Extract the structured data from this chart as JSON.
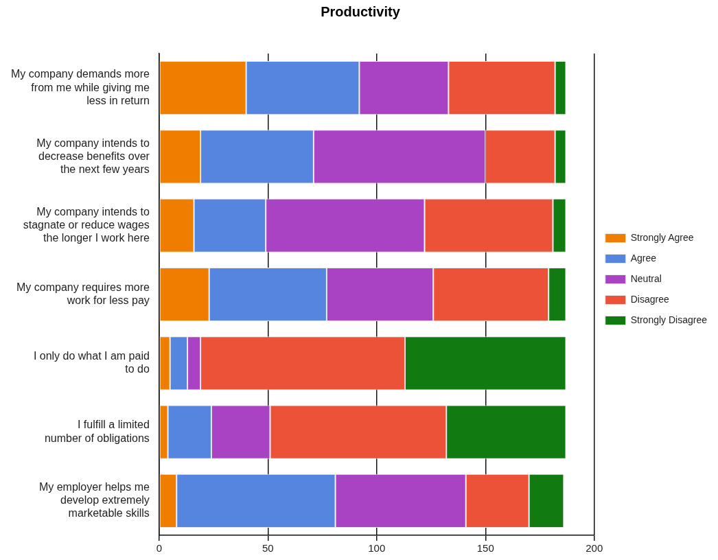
{
  "chart_data": {
    "type": "bar",
    "title": "Productivity",
    "orientation": "horizontal",
    "stacked": true,
    "categories": [
      "My company demands more from me while giving me less in return",
      "My company intends to decrease benefits over the next few years",
      "My company intends to stagnate or reduce wages the longer I work here",
      "My company requires more work for less pay",
      "I only do what I am paid to do",
      "I fulfill a limited number of obligations",
      "My employer helps me develop extremely marketable skills"
    ],
    "series": [
      {
        "name": "Strongly Agree",
        "color": "#ee7d00",
        "values": [
          40,
          19,
          16,
          23,
          5,
          4,
          8
        ]
      },
      {
        "name": "Agree",
        "color": "#5585de",
        "values": [
          52,
          52,
          33,
          54,
          8,
          20,
          73
        ]
      },
      {
        "name": "Neutral",
        "color": "#a943c4",
        "values": [
          41,
          79,
          73,
          49,
          6,
          27,
          60
        ]
      },
      {
        "name": "Disagree",
        "color": "#ec5237",
        "values": [
          49,
          32,
          59,
          53,
          94,
          81,
          29
        ]
      },
      {
        "name": "Strongly Disagree",
        "color": "#117a11",
        "values": [
          5,
          5,
          6,
          8,
          74,
          55,
          16
        ]
      }
    ],
    "xlim": [
      0,
      200
    ],
    "xticks": [
      0,
      50,
      100,
      150,
      200
    ],
    "grid": "x",
    "legend": "right"
  }
}
